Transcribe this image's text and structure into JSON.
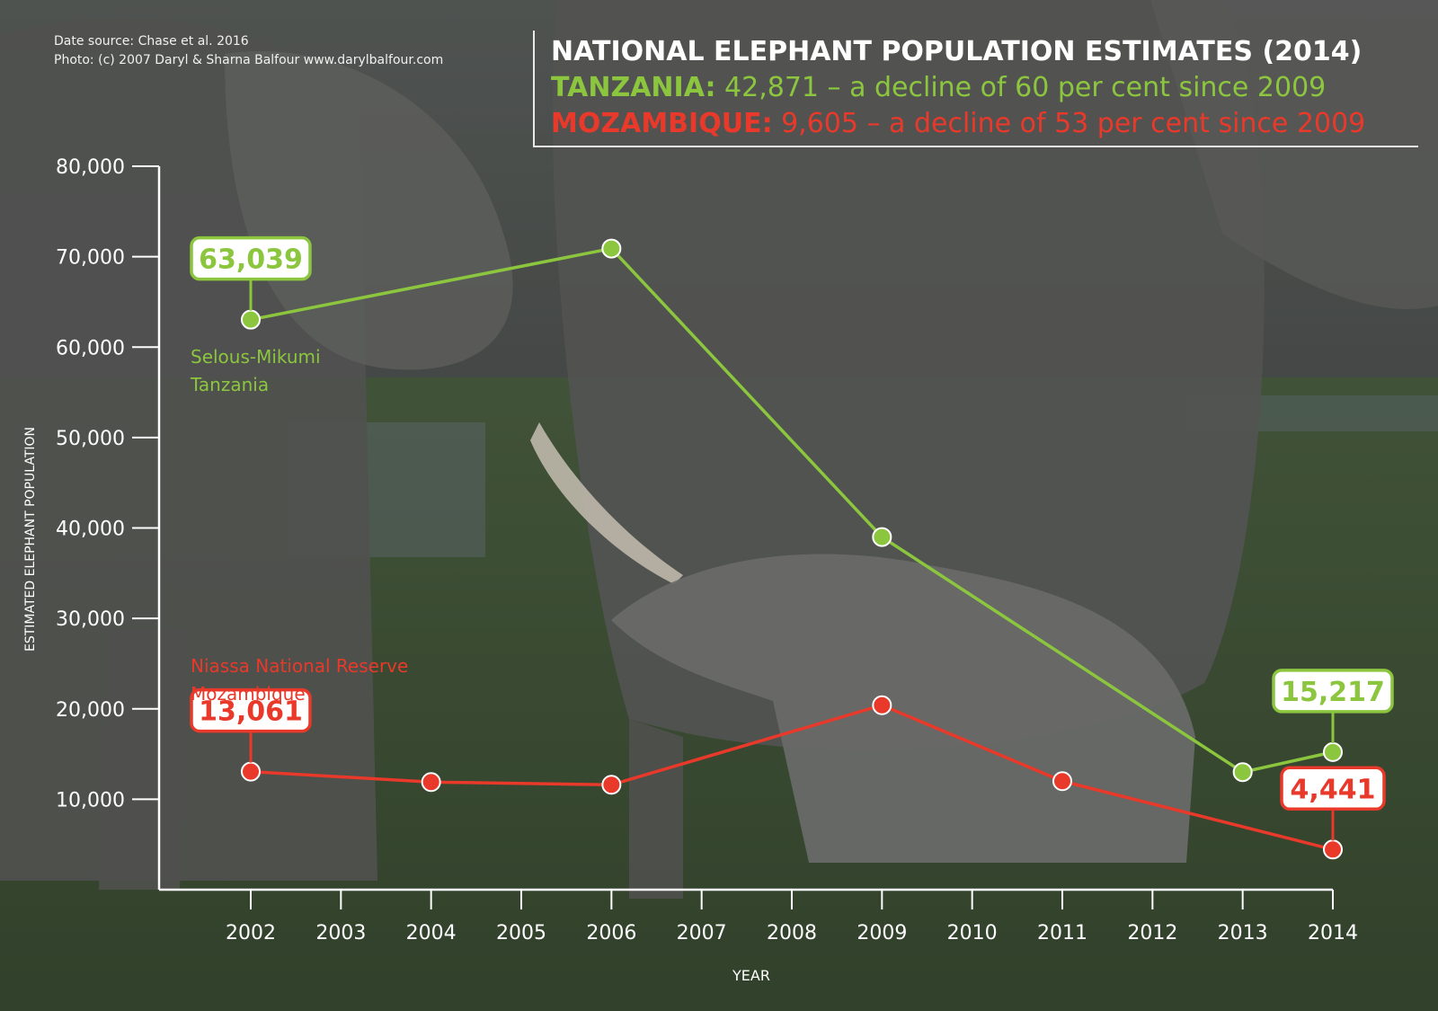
{
  "credits": {
    "source": "Date source: Chase et al. 2016",
    "photo": "Photo: (c) 2007 Daryl & Sharna Balfour www.darylbalfour.com"
  },
  "headline": {
    "title": "NATIONAL ELEPHANT POPULATION ESTIMATES (2014)",
    "tanzania_name": "TANZANIA:",
    "tanzania_text": " 42,871 – a decline of 60 per cent since 2009",
    "mozambique_name": "MOZAMBIQUE:",
    "mozambique_text": " 9,605 – a decline of 53 per cent since 2009"
  },
  "colors": {
    "tanzania": "#8cc63f",
    "mozambique": "#e8392a",
    "axis": "#ffffff"
  },
  "chart_data": {
    "type": "line",
    "xlabel": "YEAR",
    "ylabel": "ESTIMATED ELEPHANT POPULATION",
    "ylim": [
      0,
      80000
    ],
    "xlim": [
      2002,
      2014
    ],
    "x_ticks": [
      2002,
      2003,
      2004,
      2005,
      2006,
      2007,
      2008,
      2009,
      2010,
      2011,
      2012,
      2013,
      2014
    ],
    "y_ticks": [
      "10,000",
      "20,000",
      "30,000",
      "40,000",
      "50,000",
      "60,000",
      "70,000",
      "80,000"
    ],
    "y_tick_values": [
      10000,
      20000,
      30000,
      40000,
      50000,
      60000,
      70000,
      80000
    ],
    "grid": false,
    "series": [
      {
        "name": "Selous-Mikumi Tanzania",
        "label_lines": [
          "Selous-Mikumi",
          "Tanzania"
        ],
        "color": "#8cc63f",
        "points": [
          {
            "x": 2002,
            "y": 63039
          },
          {
            "x": 2006,
            "y": 70900
          },
          {
            "x": 2009,
            "y": 39000
          },
          {
            "x": 2013,
            "y": 13000
          },
          {
            "x": 2014,
            "y": 15217
          }
        ],
        "callouts": [
          {
            "x": 2002,
            "y": 63039,
            "text": "63,039"
          },
          {
            "x": 2014,
            "y": 15217,
            "text": "15,217"
          }
        ]
      },
      {
        "name": "Niassa National Reserve Mozambique",
        "label_lines": [
          "Niassa National Reserve",
          "Mozambique"
        ],
        "color": "#e8392a",
        "points": [
          {
            "x": 2002,
            "y": 13061
          },
          {
            "x": 2004,
            "y": 11900
          },
          {
            "x": 2006,
            "y": 11600
          },
          {
            "x": 2009,
            "y": 20400
          },
          {
            "x": 2011,
            "y": 12000
          },
          {
            "x": 2014,
            "y": 4441
          }
        ],
        "callouts": [
          {
            "x": 2002,
            "y": 13061,
            "text": "13,061"
          },
          {
            "x": 2014,
            "y": 4441,
            "text": "4,441"
          }
        ]
      }
    ]
  }
}
